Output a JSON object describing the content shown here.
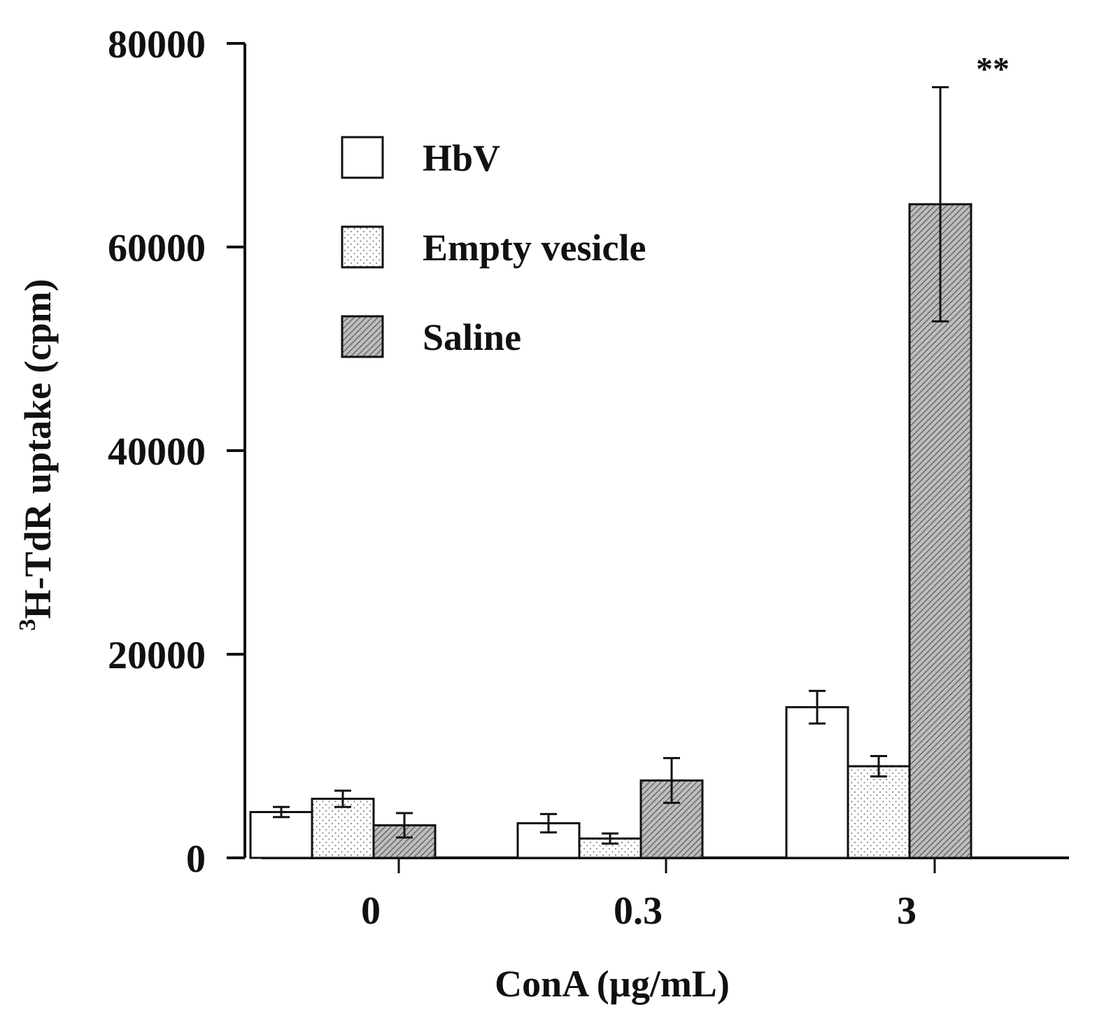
{
  "chart_data": {
    "type": "bar",
    "title": "",
    "xlabel": "ConA (µg/mL)",
    "ylabel_sup": "3",
    "ylabel": "H-TdR uptake (cpm)",
    "categories": [
      "0",
      "0.3",
      "3"
    ],
    "ylim": [
      0,
      80000
    ],
    "yticks": [
      0,
      20000,
      40000,
      60000,
      80000
    ],
    "ytick_labels": [
      "0",
      "20000",
      "40000",
      "60000",
      "80000"
    ],
    "legend_position": "upper-left",
    "series": [
      {
        "name": "HbV",
        "pattern": "none",
        "values": [
          4500,
          3400,
          14800
        ],
        "errors": [
          500,
          900,
          1600
        ]
      },
      {
        "name": "Empty vesicle",
        "pattern": "dots",
        "values": [
          5800,
          1900,
          9000
        ],
        "errors": [
          800,
          500,
          1000
        ]
      },
      {
        "name": "Saline",
        "pattern": "hatch",
        "values": [
          3200,
          7600,
          64200
        ],
        "errors": [
          1200,
          2200,
          11500
        ]
      }
    ],
    "annotations": [
      {
        "category": "3",
        "series": "Saline",
        "text": "**"
      }
    ],
    "colors": {
      "stroke": "#111111",
      "fill": "#ffffff"
    }
  }
}
